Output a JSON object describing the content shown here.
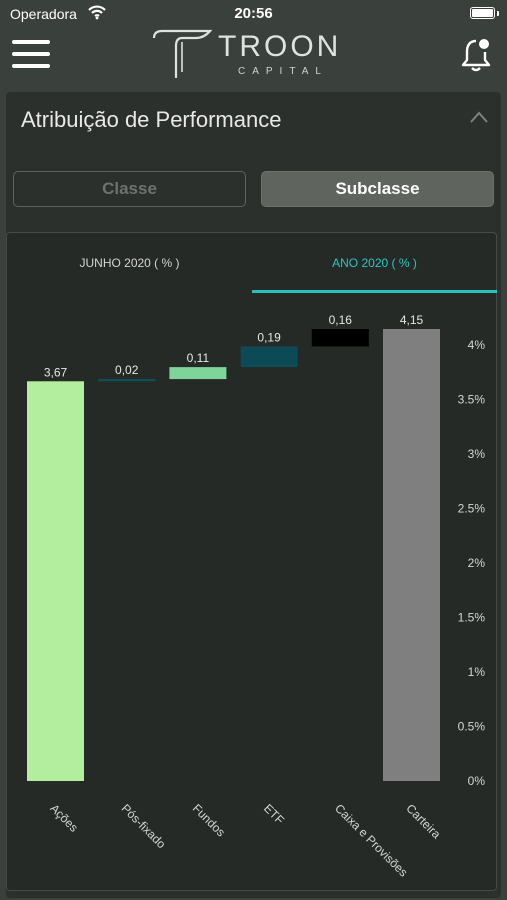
{
  "status": {
    "carrier": "Operadora",
    "time": "20:56"
  },
  "header": {
    "logo_name": "TROON",
    "logo_sub": "CAPITAL",
    "menu_icon": "hamburger-menu-icon",
    "bell_icon": "notification-bell-icon"
  },
  "panel": {
    "title": "Atribuição de Performance"
  },
  "segments": {
    "classe": "Classe",
    "subclasse": "Subclasse",
    "selected": "Subclasse"
  },
  "tabs": {
    "junho": "JUNHO 2020 ( % )",
    "ano": "ANO 2020 ( % )",
    "active": "ANO 2020 ( % )"
  },
  "colors": {
    "accent": "#27c2be"
  },
  "chart_data": {
    "type": "bar",
    "subtype": "waterfall",
    "categories": [
      "Ações",
      "Pós-fixado",
      "Fundos",
      "ETF",
      "Caixa e Provisões",
      "Carteira"
    ],
    "values": [
      3.67,
      0.02,
      0.11,
      0.19,
      0.16,
      4.15
    ],
    "data_labels": [
      "3,67",
      "0,02",
      "0,11",
      "0,19",
      "0,16",
      "4,15"
    ],
    "bar_colors": [
      "#b2ee9d",
      "#0e5059",
      "#7fd49a",
      "#0c4a55",
      "#000000",
      "#7f7f7f"
    ],
    "y_ticks": [
      "0%",
      "0.5%",
      "1%",
      "1.5%",
      "2%",
      "2.5%",
      "3%",
      "3.5%",
      "4%"
    ],
    "ylim": [
      0,
      4.15
    ],
    "y_axis_position": "right",
    "grid": false,
    "legend": "none"
  }
}
